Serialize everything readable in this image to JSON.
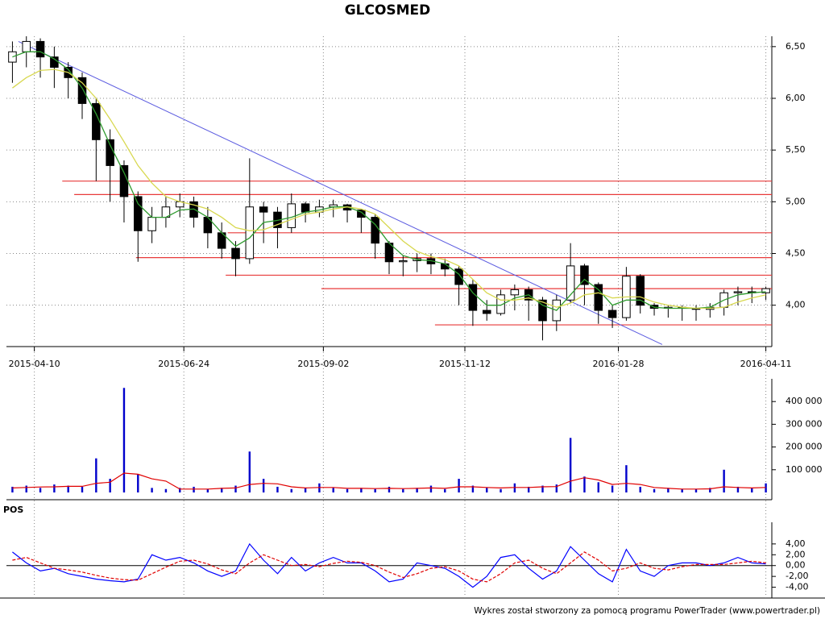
{
  "chart_data": [
    {
      "type": "candlestick",
      "title": "GLCOSMED",
      "x": [
        "2015-03-30",
        "2015-04-06",
        "2015-04-13",
        "2015-04-20",
        "2015-04-27",
        "2015-05-04",
        "2015-05-11",
        "2015-05-18",
        "2015-05-25",
        "2015-06-01",
        "2015-06-08",
        "2015-06-15",
        "2015-06-22",
        "2015-06-29",
        "2015-07-06",
        "2015-07-13",
        "2015-07-20",
        "2015-07-27",
        "2015-08-03",
        "2015-08-10",
        "2015-08-17",
        "2015-08-24",
        "2015-08-31",
        "2015-09-07",
        "2015-09-14",
        "2015-09-21",
        "2015-09-28",
        "2015-10-05",
        "2015-10-12",
        "2015-10-19",
        "2015-10-26",
        "2015-11-02",
        "2015-11-09",
        "2015-11-16",
        "2015-11-23",
        "2015-11-30",
        "2015-12-07",
        "2015-12-14",
        "2015-12-21",
        "2015-12-28",
        "2016-01-04",
        "2016-01-11",
        "2016-01-18",
        "2016-01-25",
        "2016-02-01",
        "2016-02-08",
        "2016-02-15",
        "2016-02-22",
        "2016-02-29",
        "2016-03-07",
        "2016-03-14",
        "2016-03-21",
        "2016-03-28",
        "2016-04-04",
        "2016-04-11"
      ],
      "open": [
        6.35,
        6.45,
        6.55,
        6.4,
        6.3,
        6.2,
        5.95,
        5.6,
        5.35,
        5.05,
        4.72,
        4.85,
        4.95,
        5.0,
        4.85,
        4.7,
        4.55,
        4.45,
        4.95,
        4.9,
        4.75,
        4.98,
        4.9,
        4.95,
        4.97,
        4.92,
        4.85,
        4.6,
        4.42,
        4.43,
        4.45,
        4.4,
        4.35,
        4.2,
        3.95,
        3.92,
        4.1,
        4.15,
        4.05,
        3.85,
        4.05,
        4.38,
        4.2,
        3.95,
        3.88,
        4.28,
        4.0,
        3.97,
        3.98,
        3.97,
        3.96,
        3.98,
        4.12,
        4.13,
        4.12
      ],
      "high": [
        6.55,
        6.6,
        6.58,
        6.5,
        6.35,
        6.25,
        6.0,
        5.7,
        5.4,
        5.1,
        4.95,
        5.05,
        5.08,
        5.05,
        4.95,
        4.8,
        4.62,
        5.42,
        5.0,
        4.95,
        5.08,
        5.0,
        5.02,
        5.02,
        4.98,
        4.93,
        4.88,
        4.62,
        4.48,
        4.5,
        4.5,
        4.45,
        4.38,
        4.25,
        4.05,
        4.15,
        4.2,
        4.18,
        4.08,
        4.1,
        4.6,
        4.4,
        4.22,
        4.0,
        4.37,
        4.3,
        4.02,
        4.0,
        4.0,
        4.0,
        4.02,
        4.15,
        4.18,
        4.18,
        4.18
      ],
      "low": [
        6.15,
        6.3,
        6.2,
        6.1,
        6.0,
        5.8,
        5.2,
        5.0,
        4.8,
        4.42,
        4.6,
        4.75,
        4.85,
        4.75,
        4.55,
        4.45,
        4.28,
        4.4,
        4.6,
        4.55,
        4.7,
        4.8,
        4.85,
        4.85,
        4.8,
        4.7,
        4.45,
        4.3,
        4.28,
        4.32,
        4.3,
        4.28,
        4.0,
        3.8,
        3.85,
        3.9,
        3.95,
        3.85,
        3.66,
        3.75,
        4.02,
        4.0,
        3.82,
        3.78,
        3.85,
        3.92,
        3.9,
        3.88,
        3.85,
        3.85,
        3.88,
        3.9,
        4.0,
        4.02,
        4.05
      ],
      "close": [
        6.45,
        6.55,
        6.4,
        6.3,
        6.2,
        5.95,
        5.6,
        5.35,
        5.05,
        4.72,
        4.85,
        4.95,
        5.0,
        4.85,
        4.7,
        4.55,
        4.45,
        4.95,
        4.9,
        4.75,
        4.98,
        4.9,
        4.95,
        4.97,
        4.92,
        4.85,
        4.6,
        4.42,
        4.43,
        4.45,
        4.4,
        4.35,
        4.2,
        3.95,
        3.92,
        4.1,
        4.15,
        4.05,
        3.85,
        4.05,
        4.38,
        4.2,
        3.95,
        3.88,
        4.28,
        4.0,
        3.97,
        3.98,
        3.97,
        3.96,
        3.98,
        4.12,
        4.13,
        4.12,
        4.16
      ],
      "up_color": "#ffffff",
      "down_color": "#000000",
      "overlays": [
        {
          "color": "#2e9a2e",
          "values": [
            6.4,
            6.45,
            6.45,
            6.38,
            6.28,
            6.1,
            5.85,
            5.55,
            5.28,
            4.98,
            4.85,
            4.85,
            4.92,
            4.93,
            4.85,
            4.7,
            4.57,
            4.65,
            4.8,
            4.82,
            4.85,
            4.9,
            4.92,
            4.95,
            4.95,
            4.9,
            4.78,
            4.6,
            4.48,
            4.44,
            4.43,
            4.4,
            4.3,
            4.12,
            4.0,
            4.0,
            4.07,
            4.1,
            4.0,
            3.95,
            4.1,
            4.25,
            4.15,
            4.0,
            4.05,
            4.05,
            3.98,
            3.97,
            3.97,
            3.97,
            3.98,
            4.05,
            4.1,
            4.12,
            4.13
          ]
        },
        {
          "color": "#d8d850",
          "values": [
            6.1,
            6.2,
            6.27,
            6.28,
            6.25,
            6.15,
            6.0,
            5.8,
            5.58,
            5.35,
            5.18,
            5.05,
            5.0,
            4.97,
            4.93,
            4.85,
            4.75,
            4.72,
            4.73,
            4.78,
            4.83,
            4.88,
            4.9,
            4.93,
            4.95,
            4.93,
            4.88,
            4.75,
            4.62,
            4.52,
            4.47,
            4.44,
            4.38,
            4.25,
            4.12,
            4.05,
            4.05,
            4.07,
            4.03,
            3.98,
            4.02,
            4.1,
            4.12,
            4.07,
            4.08,
            4.08,
            4.03,
            4.0,
            3.98,
            3.97,
            3.97,
            3.98,
            4.03,
            4.07,
            4.1
          ]
        }
      ],
      "trendline": {
        "color": "#5b5be0",
        "x": [
          "2015-04-02",
          "2016-02-19"
        ],
        "y": [
          6.55,
          3.62
        ]
      },
      "levels": {
        "color": "#e83a3a",
        "values": [
          5.2,
          5.07,
          4.7,
          4.46,
          4.29,
          4.16,
          3.81
        ],
        "start": [
          "2015-04-24",
          "2015-04-30",
          "2015-07-16",
          "2015-05-31",
          "2015-07-15",
          "2015-09-01",
          "2015-10-28"
        ]
      },
      "xlim": [
        "2015-03-27",
        "2016-04-14"
      ],
      "xticks": [
        "2015-04-10",
        "2015-06-24",
        "2015-09-02",
        "2015-11-12",
        "2016-01-28",
        "2016-04-11"
      ],
      "ylim": [
        3.6,
        6.6
      ],
      "yticks": [
        {
          "value": 4,
          "label": "4,00"
        },
        {
          "value": 4.5,
          "label": "4,50"
        },
        {
          "value": 5,
          "label": "5,00"
        },
        {
          "value": 5.5,
          "label": "5,50"
        },
        {
          "value": 6,
          "label": "6,00"
        },
        {
          "value": 6.5,
          "label": "6,50"
        }
      ],
      "grid": true
    },
    {
      "type": "bar",
      "values": [
        25000,
        30000,
        20000,
        35000,
        30000,
        25000,
        150000,
        60000,
        460000,
        80000,
        20000,
        15000,
        20000,
        25000,
        15000,
        20000,
        30000,
        180000,
        60000,
        25000,
        15000,
        20000,
        40000,
        20000,
        15000,
        20000,
        15000,
        25000,
        15000,
        20000,
        30000,
        15000,
        60000,
        30000,
        20000,
        15000,
        40000,
        25000,
        30000,
        35000,
        240000,
        70000,
        45000,
        30000,
        120000,
        25000,
        15000,
        20000,
        15000,
        15000,
        20000,
        100000,
        25000,
        20000,
        40000
      ],
      "color": "#0000cc",
      "overlays": [
        {
          "color": "#e00000",
          "values": [
            20000,
            22000,
            24000,
            25000,
            27000,
            27000,
            40000,
            45000,
            85000,
            80000,
            60000,
            50000,
            15000,
            15000,
            15000,
            18000,
            20000,
            35000,
            40000,
            38000,
            25000,
            20000,
            22000,
            22000,
            18000,
            18000,
            17000,
            18000,
            17000,
            18000,
            20000,
            18000,
            25000,
            25000,
            22000,
            20000,
            22000,
            22000,
            25000,
            26000,
            50000,
            65000,
            55000,
            35000,
            40000,
            35000,
            22000,
            18000,
            15000,
            15000,
            16000,
            25000,
            22000,
            20000,
            22000
          ]
        }
      ],
      "ylim": [
        0,
        500000
      ],
      "yticks": [
        {
          "value": 100000,
          "label": "100 000"
        },
        {
          "value": 200000,
          "label": "200 000"
        },
        {
          "value": 300000,
          "label": "300 000"
        },
        {
          "value": 400000,
          "label": "400 000"
        }
      ],
      "grid": false
    },
    {
      "type": "line",
      "title": "POS",
      "series": [
        {
          "color": "#0000ff",
          "values": [
            2.5,
            0.5,
            -1.0,
            -0.5,
            -1.5,
            -2.0,
            -2.5,
            -2.8,
            -3.0,
            -2.5,
            2.0,
            1.0,
            1.5,
            0.5,
            -1.0,
            -2.0,
            -1.0,
            4.0,
            1.0,
            -1.5,
            1.5,
            -1.0,
            0.5,
            1.5,
            0.5,
            0.5,
            -1.0,
            -3.0,
            -2.5,
            0.5,
            0.0,
            -0.5,
            -2.0,
            -4.0,
            -2.0,
            1.5,
            2.0,
            -0.5,
            -2.5,
            -1.0,
            3.5,
            1.0,
            -1.5,
            -3.0,
            3.0,
            -1.0,
            -2.0,
            0.0,
            0.5,
            0.5,
            0.0,
            0.5,
            1.5,
            0.5,
            0.3
          ]
        },
        {
          "color": "#e00000",
          "dash": true,
          "values": [
            1.0,
            1.5,
            0.5,
            -0.5,
            -0.8,
            -1.2,
            -1.8,
            -2.3,
            -2.6,
            -2.7,
            -1.5,
            -0.3,
            0.8,
            1.0,
            0.3,
            -0.8,
            -1.5,
            0.5,
            2.0,
            1.0,
            0.0,
            0.2,
            -0.2,
            0.4,
            0.8,
            0.6,
            0.0,
            -1.2,
            -2.2,
            -1.5,
            -0.5,
            -0.2,
            -1.0,
            -2.5,
            -3.0,
            -1.5,
            0.5,
            1.0,
            -0.5,
            -1.5,
            0.5,
            2.5,
            1.0,
            -1.0,
            -0.5,
            0.5,
            -0.5,
            -0.8,
            -0.2,
            0.2,
            0.2,
            0.2,
            0.5,
            0.8,
            0.5
          ]
        }
      ],
      "ylim": [
        -6,
        8
      ],
      "yticks": [
        {
          "value": -4,
          "label": "-4,00"
        },
        {
          "value": -2,
          "label": "-2,00"
        },
        {
          "value": 0,
          "label": "0,00"
        },
        {
          "value": 2,
          "label": "2,00"
        },
        {
          "value": 4,
          "label": "4,00"
        }
      ],
      "grid": false,
      "zero_line": true
    }
  ],
  "footer": "Wykres został stworzony za pomocą programu PowerTrader (www.powertrader.pl)"
}
